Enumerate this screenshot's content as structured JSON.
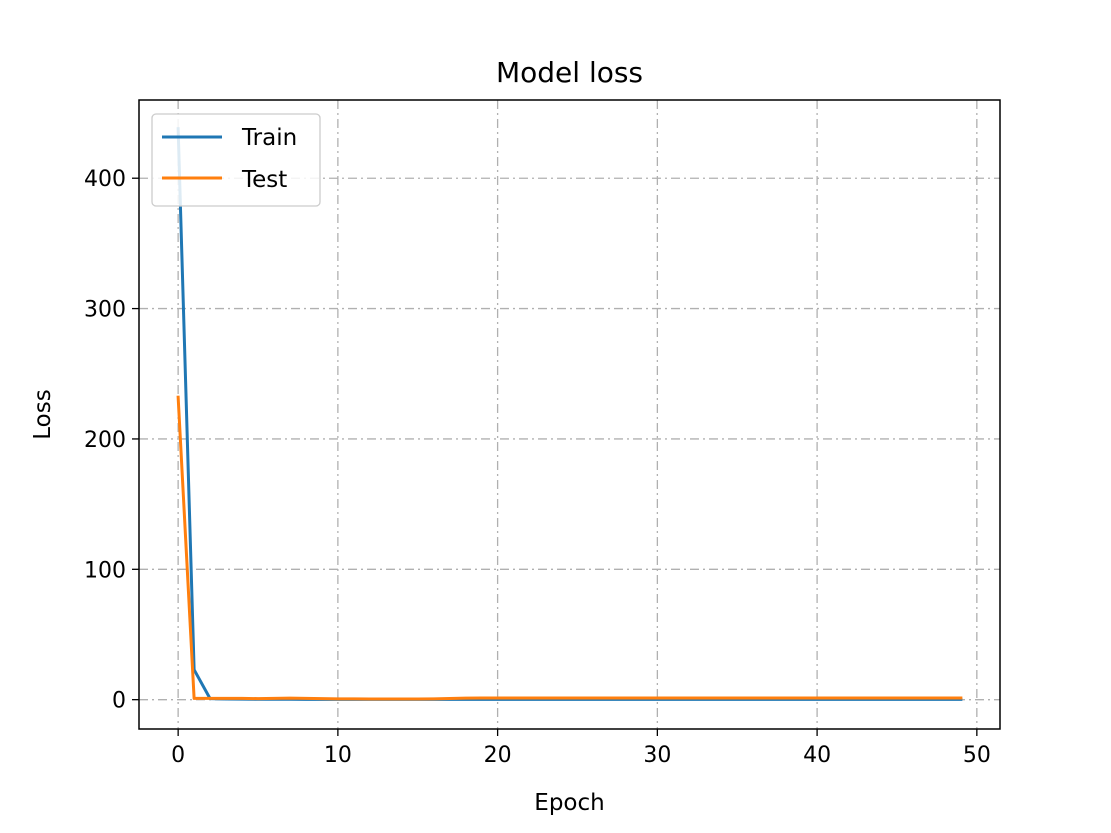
{
  "chart_data": {
    "type": "line",
    "title": "Model loss",
    "xlabel": "Epoch",
    "ylabel": "Loss",
    "xlim": [
      -2.45,
      51.45
    ],
    "ylim": [
      -22.5,
      460
    ],
    "xticks": [
      0,
      10,
      20,
      30,
      40,
      50
    ],
    "yticks": [
      0,
      100,
      200,
      300,
      400
    ],
    "grid": true,
    "legend_position": "top-left",
    "series": [
      {
        "name": "Train",
        "color": "#1f77b4",
        "x": [
          0,
          1,
          2,
          3,
          4,
          5,
          6,
          7,
          8,
          9,
          10,
          11,
          12,
          13,
          14,
          15,
          16,
          17,
          18,
          19,
          20,
          21,
          22,
          23,
          24,
          25,
          26,
          27,
          28,
          29,
          30,
          31,
          32,
          33,
          34,
          35,
          36,
          37,
          38,
          39,
          40,
          41,
          42,
          43,
          44,
          45,
          46,
          47,
          48,
          49
        ],
        "values": [
          438,
          23,
          0.8,
          0.5,
          0.4,
          0.3,
          0.3,
          0.3,
          0.2,
          0.2,
          0.2,
          0.2,
          0.2,
          0.2,
          0.2,
          0.2,
          0.2,
          0.2,
          0.2,
          0.2,
          0.2,
          0.2,
          0.2,
          0.2,
          0.2,
          0.2,
          0.2,
          0.2,
          0.2,
          0.2,
          0.2,
          0.2,
          0.2,
          0.2,
          0.2,
          0.2,
          0.2,
          0.2,
          0.2,
          0.2,
          0.2,
          0.2,
          0.2,
          0.2,
          0.2,
          0.2,
          0.2,
          0.2,
          0.2,
          0.2
        ]
      },
      {
        "name": "Test",
        "color": "#ff7f0e",
        "x": [
          0,
          1,
          2,
          3,
          4,
          5,
          6,
          7,
          8,
          9,
          10,
          11,
          12,
          13,
          14,
          15,
          16,
          17,
          18,
          19,
          20,
          21,
          22,
          23,
          24,
          25,
          26,
          27,
          28,
          29,
          30,
          31,
          32,
          33,
          34,
          35,
          36,
          37,
          38,
          39,
          40,
          41,
          42,
          43,
          44,
          45,
          46,
          47,
          48,
          49
        ],
        "values": [
          232,
          1,
          1,
          1,
          1,
          0.8,
          1,
          1.2,
          1,
          0.8,
          0.6,
          0.6,
          0.5,
          0.5,
          0.5,
          0.5,
          0.6,
          0.9,
          1.2,
          1.3,
          1.3,
          1.3,
          1.3,
          1.3,
          1.3,
          1.3,
          1.3,
          1.3,
          1.3,
          1.3,
          1.3,
          1.3,
          1.3,
          1.3,
          1.3,
          1.3,
          1.3,
          1.3,
          1.3,
          1.3,
          1.3,
          1.3,
          1.3,
          1.3,
          1.3,
          1.3,
          1.3,
          1.3,
          1.3,
          1.3
        ]
      }
    ]
  }
}
